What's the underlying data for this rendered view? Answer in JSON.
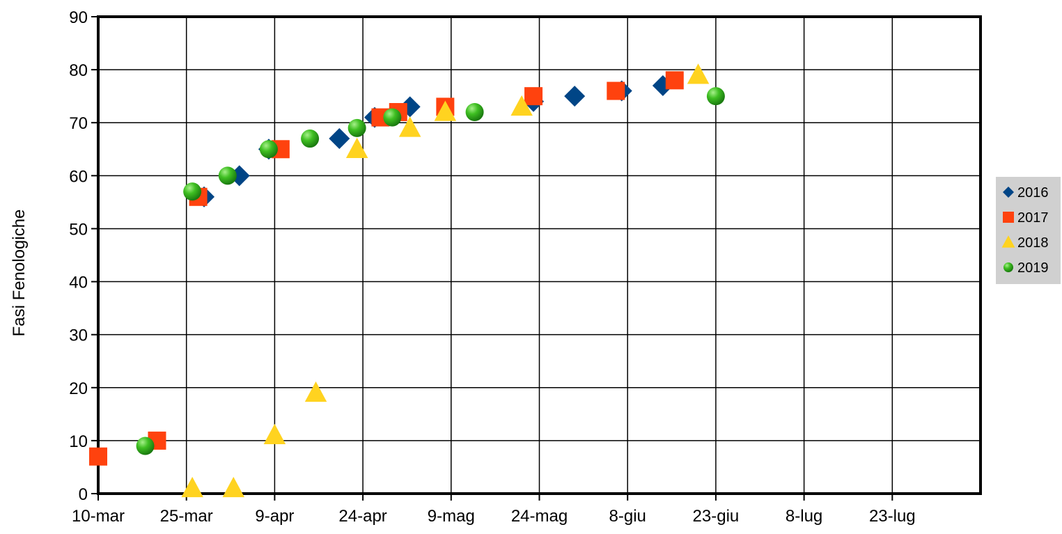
{
  "chart_data": {
    "type": "scatter",
    "title": "",
    "xlabel": "",
    "ylabel": "Fasi Fenologiche",
    "x_ticks": [
      "10-mar",
      "25-mar",
      "9-apr",
      "24-apr",
      "9-mag",
      "24-mag",
      "8-giu",
      "23-giu",
      "8-lug",
      "23-lug"
    ],
    "y_ticks": [
      "0",
      "10",
      "20",
      "30",
      "40",
      "50",
      "60",
      "70",
      "80",
      "90"
    ],
    "xlim": [
      "10-mar",
      "7-ago"
    ],
    "ylim": [
      0,
      90
    ],
    "grid": true,
    "legend_position": "right",
    "series": [
      {
        "name": "2016",
        "marker": "diamond",
        "color": "#004586",
        "points": [
          {
            "x": "28-mar",
            "y": 56
          },
          {
            "x": "3-apr",
            "y": 60
          },
          {
            "x": "8-apr",
            "y": 65
          },
          {
            "x": "20-apr",
            "y": 67
          },
          {
            "x": "26-apr",
            "y": 71
          },
          {
            "x": "2-mag",
            "y": 73
          },
          {
            "x": "23-mag",
            "y": 74
          },
          {
            "x": "30-mag",
            "y": 75
          },
          {
            "x": "7-giu",
            "y": 76
          },
          {
            "x": "14-giu",
            "y": 77
          }
        ]
      },
      {
        "name": "2017",
        "marker": "square",
        "color": "#ff420e",
        "points": [
          {
            "x": "10-mar",
            "y": 7
          },
          {
            "x": "20-mar",
            "y": 10
          },
          {
            "x": "27-mar",
            "y": 56
          },
          {
            "x": "10-apr",
            "y": 65
          },
          {
            "x": "27-apr",
            "y": 71
          },
          {
            "x": "30-apr",
            "y": 72
          },
          {
            "x": "8-mag",
            "y": 73
          },
          {
            "x": "23-mag",
            "y": 75
          },
          {
            "x": "6-giu",
            "y": 76
          },
          {
            "x": "16-giu",
            "y": 78
          }
        ]
      },
      {
        "name": "2018",
        "marker": "triangle",
        "color": "#ffd320",
        "points": [
          {
            "x": "26-mar",
            "y": 1
          },
          {
            "x": "2-apr",
            "y": 1
          },
          {
            "x": "9-apr",
            "y": 11
          },
          {
            "x": "16-apr",
            "y": 19
          },
          {
            "x": "23-apr",
            "y": 65
          },
          {
            "x": "2-mag",
            "y": 69
          },
          {
            "x": "8-mag",
            "y": 72
          },
          {
            "x": "21-mag",
            "y": 73
          },
          {
            "x": "20-giu",
            "y": 79
          }
        ]
      },
      {
        "name": "2019",
        "marker": "circle",
        "color": "#2ca01c",
        "points": [
          {
            "x": "18-mar",
            "y": 9
          },
          {
            "x": "26-mar",
            "y": 57
          },
          {
            "x": "1-apr",
            "y": 60
          },
          {
            "x": "8-apr",
            "y": 65
          },
          {
            "x": "15-apr",
            "y": 67
          },
          {
            "x": "23-apr",
            "y": 69
          },
          {
            "x": "29-apr",
            "y": 71
          },
          {
            "x": "13-mag",
            "y": 72
          },
          {
            "x": "23-giu",
            "y": 75
          }
        ]
      }
    ]
  }
}
